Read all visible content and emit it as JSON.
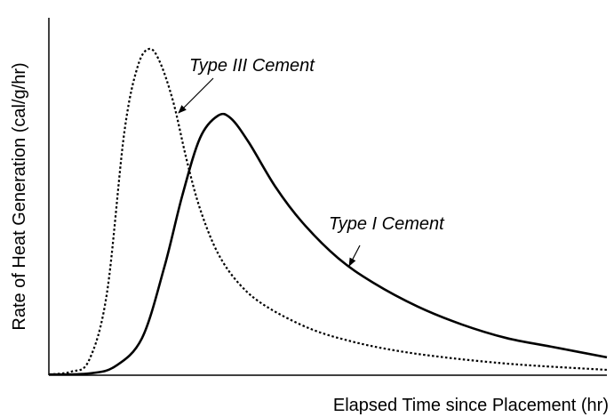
{
  "chart_data": {
    "type": "line",
    "xlabel": "Elapsed Time since Placement (hr)",
    "ylabel": "Rate of Heat Generation (cal/g/hr)",
    "xlim": [
      0,
      100
    ],
    "ylim": [
      0,
      100
    ],
    "series": [
      {
        "name": "Type III Cement",
        "color": "#000000",
        "style": "dotted",
        "x": [
          0,
          4.0,
          7.2,
          10.4,
          13.5,
          15.9,
          18.0,
          19.9,
          22.3,
          24.7,
          27.1,
          30.3,
          34.2,
          39.0,
          47.0,
          54.9,
          62.9,
          70.9,
          78.8,
          86.8,
          100
        ],
        "values": [
          0.2,
          1.0,
          4.2,
          22.9,
          67.7,
          86.3,
          91.3,
          87.6,
          76.4,
          60.2,
          46.5,
          34.1,
          25.4,
          19.2,
          12.9,
          9.2,
          6.7,
          5.0,
          3.7,
          2.7,
          1.5
        ]
      },
      {
        "name": "Type I Cement",
        "color": "#000000",
        "style": "solid",
        "x": [
          0,
          7.2,
          11.9,
          16.7,
          20.7,
          23.9,
          27.1,
          30.3,
          32.6,
          35.8,
          40.6,
          45.4,
          51.8,
          58.1,
          66.1,
          74.0,
          82.0,
          90.0,
          100
        ],
        "values": [
          0.2,
          0.5,
          2.5,
          10.4,
          30.3,
          50.2,
          66.4,
          72.6,
          71.9,
          65.2,
          52.7,
          42.8,
          32.8,
          25.9,
          19.2,
          14.2,
          10.4,
          8.0,
          5.0
        ]
      }
    ]
  }
}
